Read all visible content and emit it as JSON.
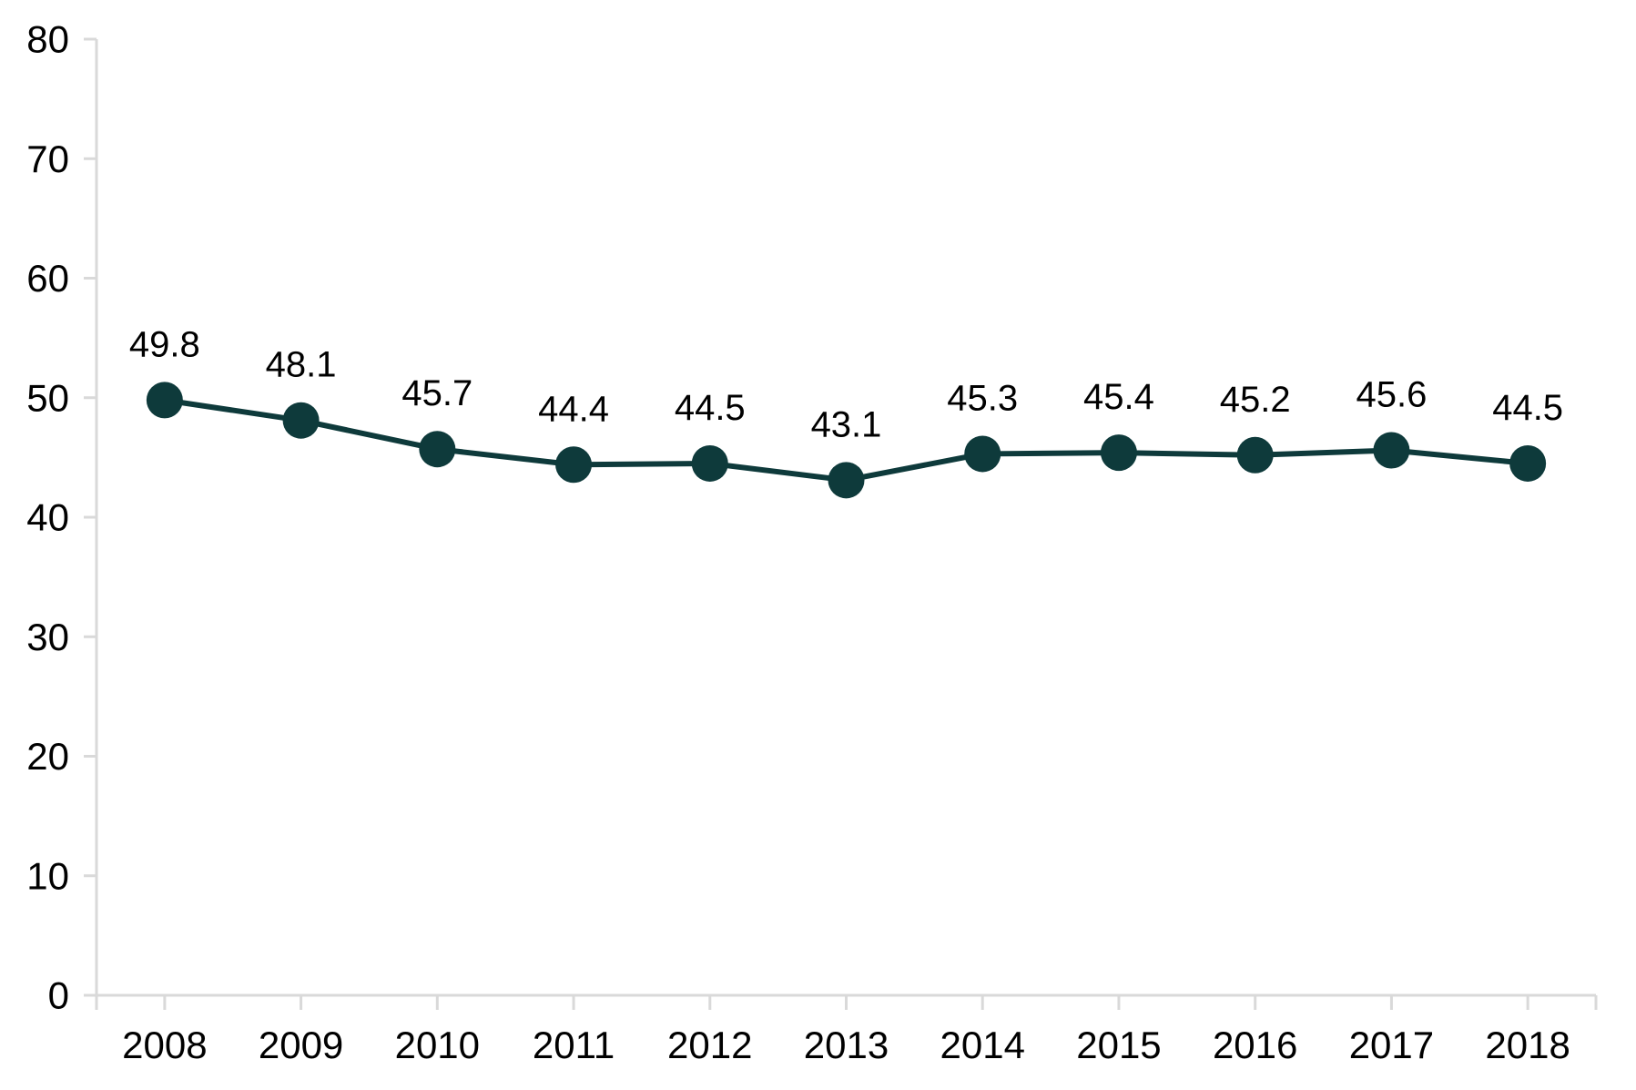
{
  "chart_data": {
    "type": "line",
    "title": "",
    "xlabel": "",
    "ylabel": "",
    "categories": [
      "2008",
      "2009",
      "2010",
      "2011",
      "2012",
      "2013",
      "2014",
      "2015",
      "2016",
      "2017",
      "2018"
    ],
    "series": [
      {
        "name": "series-1",
        "values": [
          49.8,
          48.1,
          45.7,
          44.4,
          44.5,
          43.1,
          45.3,
          45.4,
          45.2,
          45.6,
          44.5
        ],
        "data_labels": [
          "49.8",
          "48.1",
          "45.7",
          "44.4",
          "44.5",
          "43.1",
          "45.3",
          "45.4",
          "45.2",
          "45.6",
          "44.5"
        ]
      }
    ],
    "ylim": [
      0,
      80
    ],
    "y_tick_step": 10,
    "y_tick_labels": [
      "0",
      "10",
      "20",
      "30",
      "40",
      "50",
      "60",
      "70",
      "80"
    ],
    "grid": false,
    "legend": false,
    "data_label_position": "above",
    "colors": {
      "series": "#0e3a3b",
      "axis": "#d9d9d9",
      "text": "#000000"
    }
  }
}
